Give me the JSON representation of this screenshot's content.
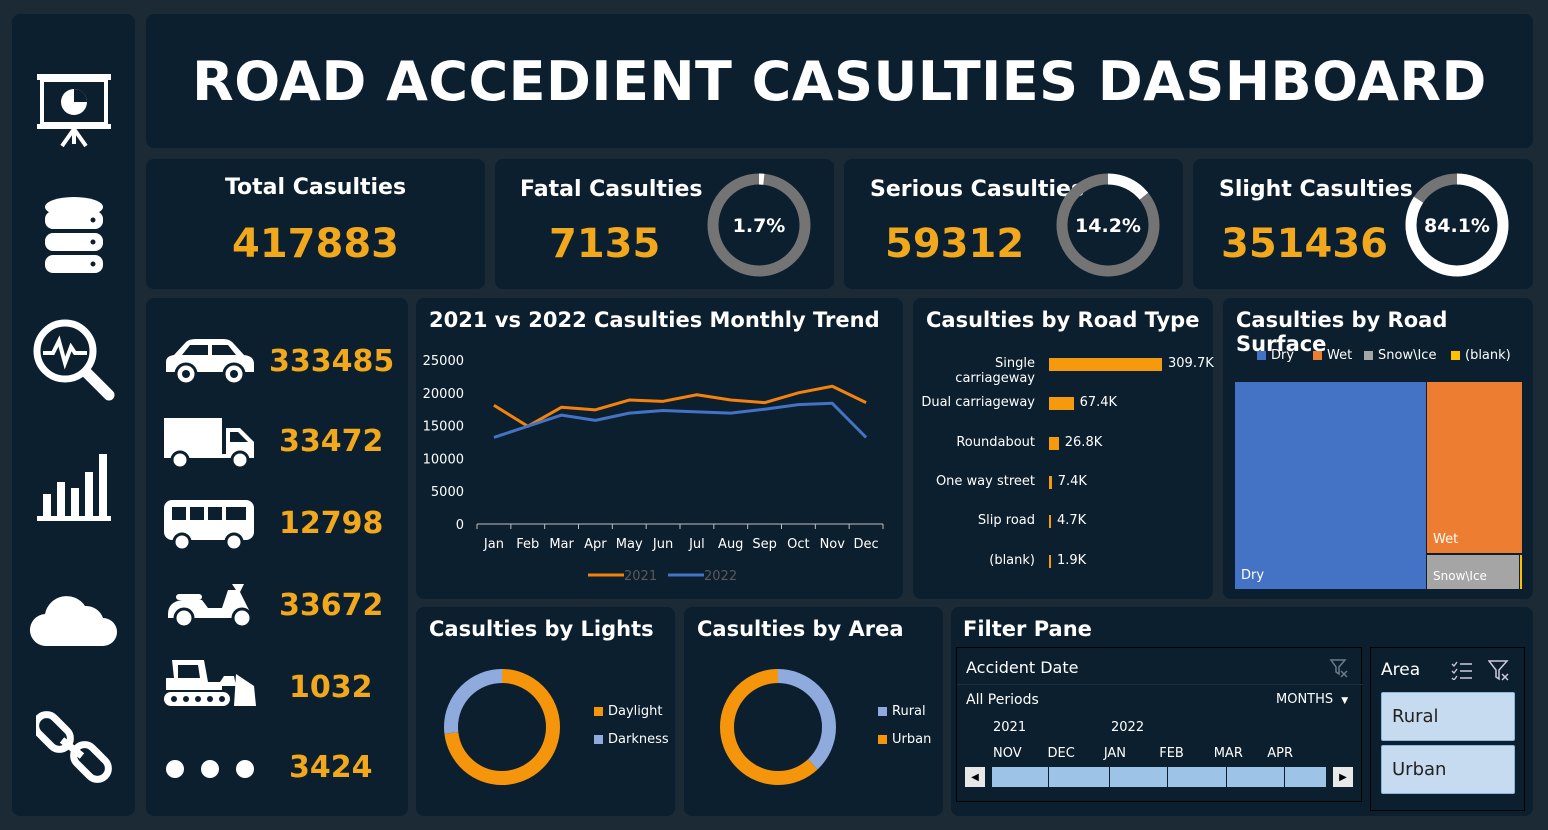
{
  "dashboard": {
    "title": "ROAD ACCEDIENT CASULTIES DASHBOARD"
  },
  "nav": [
    "presentation-icon",
    "database-icon",
    "analytics-icon",
    "bar-chart-icon",
    "cloud-icon",
    "link-icon"
  ],
  "kpis": {
    "total": {
      "label": "Total Casulties",
      "value": "417883"
    },
    "fatal": {
      "label": "Fatal Casulties",
      "value": "7135",
      "pct": "1.7%",
      "fraction": 0.017
    },
    "serious": {
      "label": "Serious Casulties",
      "value": "59312",
      "pct": "14.2%",
      "fraction": 0.142
    },
    "slight": {
      "label": "Slight Casulties",
      "value": "351436",
      "pct": "84.1%",
      "fraction": 0.841
    }
  },
  "vehicles": [
    {
      "icon": "car-icon",
      "value": "333485"
    },
    {
      "icon": "truck-icon",
      "value": "33472"
    },
    {
      "icon": "bus-icon",
      "value": "12798"
    },
    {
      "icon": "scooter-icon",
      "value": "33672"
    },
    {
      "icon": "tractor-icon",
      "value": "1032"
    },
    {
      "icon": "more-dots-icon",
      "value": "3424"
    }
  ],
  "colors": {
    "accent": "#f2a81d",
    "series_2021": "#f5820d",
    "series_2022": "#4472c4",
    "panel": "#0c1f2e",
    "bg": "#1c2a36"
  },
  "chart_data": [
    {
      "type": "line",
      "title": "2021 vs 2022 Casulties Monthly Trend",
      "categories": [
        "Jan",
        "Feb",
        "Mar",
        "Apr",
        "May",
        "Jun",
        "Jul",
        "Aug",
        "Sep",
        "Oct",
        "Nov",
        "Dec"
      ],
      "yticks": [
        "25000",
        "20000",
        "15000",
        "10000",
        "5000",
        "0"
      ],
      "ylim": [
        0,
        25000
      ],
      "series": [
        {
          "name": "2021",
          "color": "#f5820d",
          "values": [
            18100,
            14900,
            17800,
            17400,
            18900,
            18700,
            19700,
            18900,
            18500,
            20000,
            21000,
            18500
          ]
        },
        {
          "name": "2022",
          "color": "#4472c4",
          "values": [
            13200,
            14900,
            16600,
            15800,
            16900,
            17300,
            17100,
            16900,
            17500,
            18200,
            18400,
            13200
          ]
        }
      ],
      "legend": "bottom"
    },
    {
      "type": "bar",
      "title": "Casulties by Road Type",
      "categories": [
        "Single carriageway",
        "Dual carriageway",
        "Roundabout",
        "One way street",
        "Slip road",
        "(blank)"
      ],
      "values": [
        309700,
        67400,
        26800,
        7400,
        4700,
        1900
      ],
      "labels": [
        "309.7K",
        "67.4K",
        "26.8K",
        "7.4K",
        "4.7K",
        "1.9K"
      ]
    },
    {
      "type": "treemap",
      "title": "Casulties by Road Surface",
      "legend_entries": [
        "Dry",
        "Wet",
        "Snow\\Ice",
        "(blank)"
      ],
      "cells": [
        {
          "name": "Dry",
          "color": "#4472c4",
          "label": "Dry"
        },
        {
          "name": "Wet",
          "color": "#ed7d31",
          "label": "Wet"
        },
        {
          "name": "Snow\\Ice",
          "color": "#a5a5a5",
          "label": "Snow\\Ice"
        },
        {
          "name": "(blank)",
          "color": "#ffc000",
          "label": ""
        }
      ]
    },
    {
      "type": "pie",
      "title": "Casulties by Lights",
      "labels": [
        "Daylight",
        "Darkness"
      ],
      "values": [
        73,
        27
      ],
      "colors": [
        "#f5950c",
        "#8faadc"
      ]
    },
    {
      "type": "pie",
      "title": "Casulties by Area",
      "labels": [
        "Rural",
        "Urban"
      ],
      "values": [
        38,
        62
      ],
      "colors": [
        "#8faadc",
        "#f5950c"
      ]
    }
  ],
  "filter": {
    "title": "Filter Pane",
    "timeline": {
      "label": "Accident Date",
      "period": "All Periods",
      "unit": "MONTHS",
      "year_2021": "2021",
      "year_2022": "2022",
      "months": [
        "NOV",
        "DEC",
        "JAN",
        "FEB",
        "MAR",
        "APR"
      ]
    },
    "area": {
      "label": "Area",
      "options": [
        "Rural",
        "Urban"
      ]
    }
  }
}
